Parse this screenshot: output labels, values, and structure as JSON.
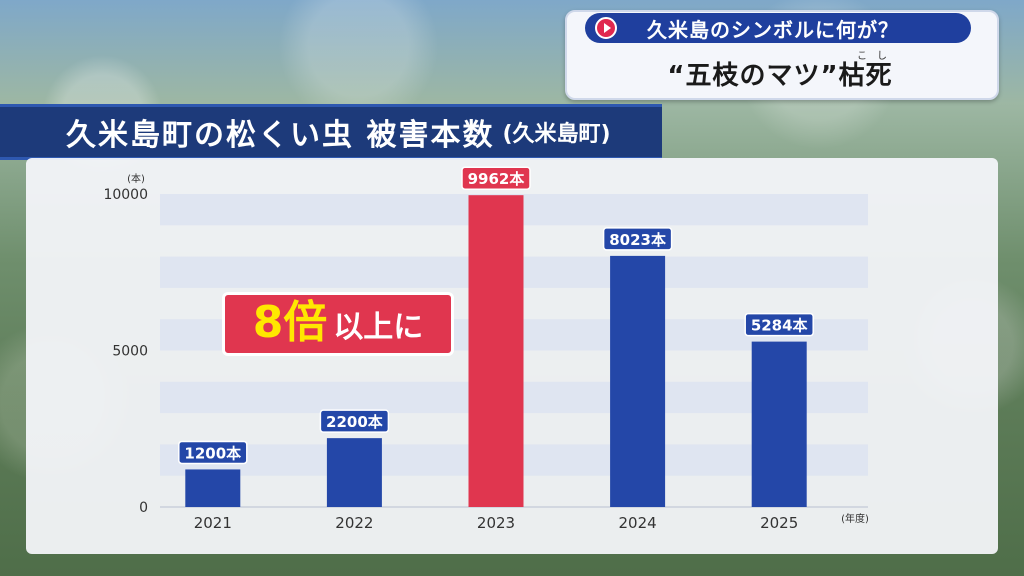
{
  "topic": {
    "pill_text": "久米島のシンボルに何が？",
    "headline": "“五枝のマツ”枯死",
    "furigana": "こし"
  },
  "title": {
    "main": "久米島町の松くい虫 被害本数",
    "sub": "(久米島町)"
  },
  "callout": {
    "big": "8倍",
    "small": "以上に"
  },
  "colors": {
    "bar_blue": "#2447a8",
    "bar_red": "#e0364f",
    "title_bg": "#1d3a7a",
    "pill_bg": "#1f3f9e"
  },
  "chart_data": {
    "type": "bar",
    "categories": [
      "2021",
      "2022",
      "2023",
      "2024",
      "2025"
    ],
    "values": [
      1200,
      2200,
      9962,
      8023,
      5284
    ],
    "data_labels": [
      "1200本",
      "2200本",
      "9962本",
      "8023本",
      "5284本"
    ],
    "highlight_index": 2,
    "y_unit": "(本)",
    "x_unit": "(年度)",
    "yticks": [
      "0",
      "5000",
      "10000"
    ],
    "ylim": [
      0,
      10000
    ],
    "grid": true
  }
}
